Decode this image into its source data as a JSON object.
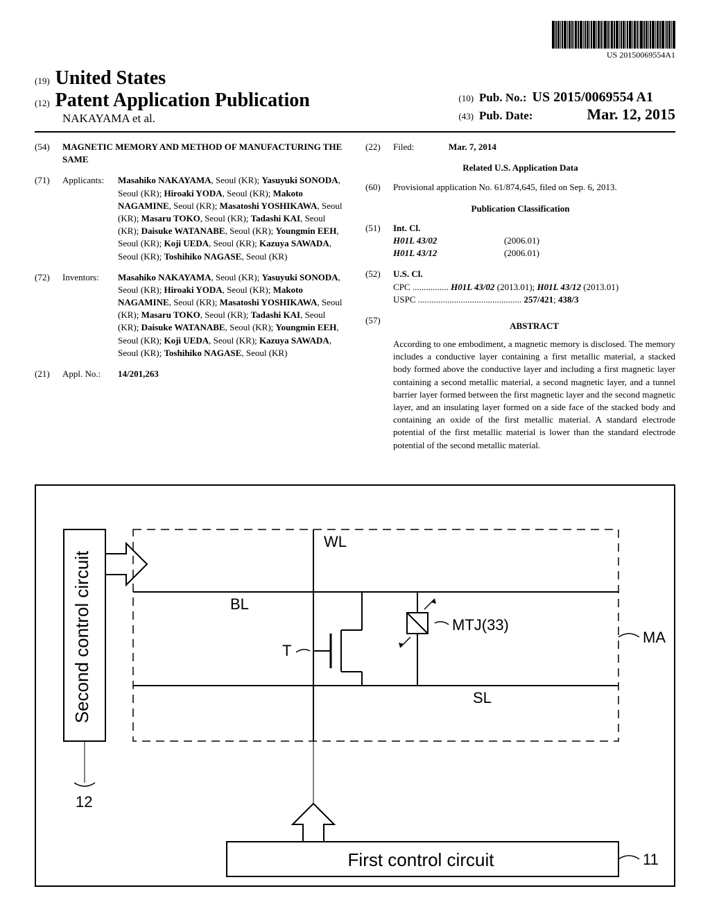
{
  "barcode_number": "US 20150069554A1",
  "country": "United States",
  "doc_type": "Patent Application Publication",
  "authors_et_al": "NAKAYAMA et al.",
  "pub_no_label": "Pub. No.:",
  "pub_no": "US 2015/0069554 A1",
  "pub_date_label": "Pub. Date:",
  "pub_date": "Mar. 12, 2015",
  "inid": {
    "country": "(19)",
    "doc_type": "(12)",
    "pub_no": "(10)",
    "pub_date": "(43)",
    "title": "(54)",
    "applicants": "(71)",
    "inventors": "(72)",
    "appl_no": "(21)",
    "filed": "(22)",
    "priority": "(60)",
    "int_cl": "(51)",
    "us_cl": "(52)",
    "abstract": "(57)"
  },
  "title": "MAGNETIC MEMORY AND METHOD OF MANUFACTURING THE SAME",
  "applicants_label": "Applicants:",
  "applicants": "Masahiko NAKAYAMA, Seoul (KR); Yasuyuki SONODA, Seoul (KR); Hiroaki YODA, Seoul (KR); Makoto NAGAMINE, Seoul (KR); Masatoshi YOSHIKAWA, Seoul (KR); Masaru TOKO, Seoul (KR); Tadashi KAI, Seoul (KR); Daisuke WATANABE, Seoul (KR); Youngmin EEH, Seoul (KR); Koji UEDA, Seoul (KR); Kazuya SAWADA, Seoul (KR); Toshihiko NAGASE, Seoul (KR)",
  "inventors_label": "Inventors:",
  "inventors": "Masahiko NAKAYAMA, Seoul (KR); Yasuyuki SONODA, Seoul (KR); Hiroaki YODA, Seoul (KR); Makoto NAGAMINE, Seoul (KR); Masatoshi YOSHIKAWA, Seoul (KR); Masaru TOKO, Seoul (KR); Tadashi KAI, Seoul (KR); Daisuke WATANABE, Seoul (KR); Youngmin EEH, Seoul (KR); Koji UEDA, Seoul (KR); Kazuya SAWADA, Seoul (KR); Toshihiko NAGASE, Seoul (KR)",
  "appl_no_label": "Appl. No.:",
  "appl_no": "14/201,263",
  "filed_label": "Filed:",
  "filed": "Mar. 7, 2014",
  "related_title": "Related U.S. Application Data",
  "priority_text": "Provisional application No. 61/874,645, filed on Sep. 6, 2013.",
  "classification_title": "Publication Classification",
  "int_cl_label": "Int. Cl.",
  "int_cl": [
    {
      "code": "H01L 43/02",
      "year": "(2006.01)"
    },
    {
      "code": "H01L 43/12",
      "year": "(2006.01)"
    }
  ],
  "us_cl_label": "U.S. Cl.",
  "cpc_line": "CPC ................ H01L 43/02 (2013.01); H01L 43/12 (2013.01)",
  "uspc_line": "USPC .............................................. 257/421; 438/3",
  "abstract_label": "ABSTRACT",
  "abstract_text": "According to one embodiment, a magnetic memory is disclosed. The memory includes a conductive layer containing a first metallic material, a stacked body formed above the conductive layer and including a first magnetic layer containing a second metallic material, a second magnetic layer, and a tunnel barrier layer formed between the first magnetic layer and the second magnetic layer, and an insulating layer formed on a side face of the stacked body and containing an oxide of the first metallic material. A standard electrode potential of the first metallic material is lower than the standard electrode potential of the second metallic material.",
  "figure": {
    "labels": {
      "wl": "WL",
      "bl": "BL",
      "t": "T",
      "mtj": "MTJ(33)",
      "sl": "SL",
      "ma": "MA",
      "ref12": "12",
      "ref11": "11",
      "second_ctrl": "Second control circuit",
      "first_ctrl": "First control circuit"
    }
  }
}
